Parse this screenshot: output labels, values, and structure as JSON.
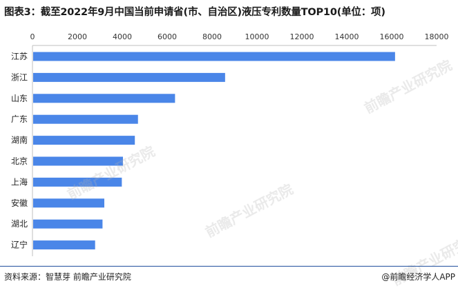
{
  "title": "图表3：截至2022年9月中国当前申请省(市、自治区)液压专利数量TOP10(单位：项)",
  "source": "资料来源：智慧芽 前瞻产业研究院",
  "brand": "@前瞻经济学人APP",
  "watermark": "前瞻产业研究院",
  "colors": {
    "bar": "#4a86e8",
    "title": "#1a1a1a",
    "rule": "#1f4e9c"
  },
  "chart_data": {
    "type": "bar",
    "orientation": "horizontal",
    "categories": [
      "江苏",
      "浙江",
      "山东",
      "广东",
      "湖南",
      "北京",
      "上海",
      "安徽",
      "湖北",
      "辽宁"
    ],
    "values": [
      16150,
      8580,
      6350,
      4700,
      4560,
      4030,
      3980,
      3200,
      3120,
      2790
    ],
    "xticks": [
      0,
      2000,
      4000,
      6000,
      8000,
      10000,
      12000,
      14000,
      16000,
      18000
    ],
    "xlim": [
      0,
      18000
    ],
    "axis_position": "top",
    "grid": false,
    "title": "图表3：截至2022年9月中国当前申请省(市、自治区)液压专利数量TOP10(单位：项)",
    "xlabel": "",
    "ylabel": ""
  }
}
